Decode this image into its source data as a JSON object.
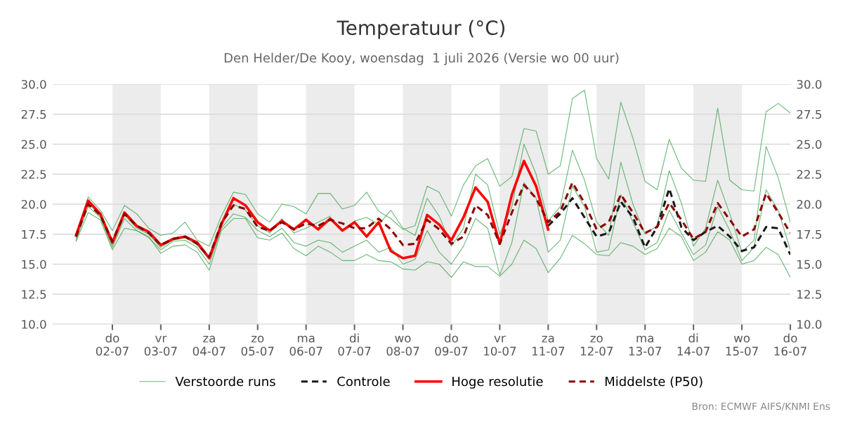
{
  "chart_data": {
    "type": "line",
    "title": "Temperatuur (°C)",
    "subtitle": "Den Helder/De Kooy, woensdag  1 juli 2026 (Versie wo 00 uur)",
    "annotations": [
      "Bron: ECMWF AIFS/KNMI Ens"
    ],
    "x": [
      "2026-07-01T06:00",
      "2026-07-01T12:00",
      "2026-07-01T18:00",
      "2026-07-02T00:00",
      "2026-07-02T06:00",
      "2026-07-02T12:00",
      "2026-07-02T18:00",
      "2026-07-03T00:00",
      "2026-07-03T06:00",
      "2026-07-03T12:00",
      "2026-07-03T18:00",
      "2026-07-04T00:00",
      "2026-07-04T06:00",
      "2026-07-04T12:00",
      "2026-07-04T18:00",
      "2026-07-05T00:00",
      "2026-07-05T06:00",
      "2026-07-05T12:00",
      "2026-07-05T18:00",
      "2026-07-06T00:00",
      "2026-07-06T06:00",
      "2026-07-06T12:00",
      "2026-07-06T18:00",
      "2026-07-07T00:00",
      "2026-07-07T06:00",
      "2026-07-07T12:00",
      "2026-07-07T18:00",
      "2026-07-08T00:00",
      "2026-07-08T06:00",
      "2026-07-08T12:00",
      "2026-07-08T18:00",
      "2026-07-09T00:00",
      "2026-07-09T06:00",
      "2026-07-09T12:00",
      "2026-07-09T18:00",
      "2026-07-10T00:00",
      "2026-07-10T06:00",
      "2026-07-10T12:00",
      "2026-07-10T18:00",
      "2026-07-11T00:00",
      "2026-07-11T06:00",
      "2026-07-11T12:00",
      "2026-07-11T18:00",
      "2026-07-12T00:00",
      "2026-07-12T06:00",
      "2026-07-12T12:00",
      "2026-07-12T18:00",
      "2026-07-13T00:00",
      "2026-07-13T06:00",
      "2026-07-13T12:00",
      "2026-07-13T18:00",
      "2026-07-14T00:00",
      "2026-07-14T06:00",
      "2026-07-14T12:00",
      "2026-07-14T18:00",
      "2026-07-15T00:00",
      "2026-07-15T06:00",
      "2026-07-15T12:00",
      "2026-07-15T18:00",
      "2026-07-16T00:00"
    ],
    "series": [
      {
        "name": "Verstoorde runs",
        "color": "#2e9a3e",
        "line_style": "solid",
        "values": [
          17.5,
          20.6,
          19.5,
          17.8,
          19.9,
          19.2,
          18.0,
          17.4,
          17.6,
          18.5,
          17.0,
          16.5,
          19.0,
          21.0,
          20.8,
          19.2,
          18.5,
          20.0,
          19.8,
          19.2,
          20.9,
          20.9,
          19.6,
          19.9,
          21.0,
          19.4,
          18.8,
          17.9,
          18.2,
          21.5,
          21.0,
          19.0,
          21.6,
          23.2,
          23.8,
          21.5,
          22.3,
          26.3,
          26.1,
          22.5,
          23.2,
          28.8,
          29.5,
          23.8,
          22.1,
          28.5,
          25.5,
          21.9,
          21.2,
          25.4,
          23.0,
          22.0,
          21.9,
          28.0,
          22.0,
          21.2,
          21.1,
          27.7,
          28.4,
          27.6
        ]
      },
      {
        "color": "#2e9a3e",
        "line_style": "solid",
        "values": [
          16.9,
          19.3,
          18.7,
          16.2,
          18.0,
          17.8,
          17.3,
          15.9,
          16.5,
          16.6,
          16.0,
          14.5,
          17.8,
          18.8,
          18.8,
          17.2,
          17.0,
          17.6,
          16.3,
          15.7,
          16.5,
          16.0,
          15.3,
          15.3,
          15.8,
          15.3,
          15.2,
          14.6,
          14.5,
          15.2,
          15.0,
          13.9,
          15.2,
          14.8,
          14.8,
          14.0,
          15.0,
          17.0,
          16.3,
          14.3,
          15.5,
          17.4,
          16.7,
          15.8,
          15.7,
          16.8,
          16.5,
          15.8,
          16.3,
          18.0,
          17.3,
          15.3,
          16.0,
          17.7,
          17.0,
          15.0,
          15.3,
          16.4,
          15.8,
          13.9
        ]
      },
      {
        "color": "#2e9a3e",
        "line_style": "solid",
        "values": [
          17.2,
          20.1,
          19.0,
          16.6,
          19.1,
          18.0,
          17.5,
          16.4,
          17.0,
          17.2,
          16.6,
          15.4,
          18.5,
          20.0,
          19.5,
          18.2,
          17.6,
          18.8,
          17.6,
          18.0,
          18.5,
          19.0,
          null,
          18.6,
          18.9,
          18.3,
          19.5,
          18.0,
          17.4,
          20.5,
          19.0,
          16.5,
          18.0,
          22.5,
          21.6,
          17.5,
          19.8,
          25.0,
          22.5,
          18.6,
          19.8,
          24.5,
          22.0,
          18.5,
          17.4,
          23.5,
          20.0,
          17.5,
          18.2,
          22.8,
          20.1,
          16.5,
          18.0,
          22.0,
          19.2,
          16.0,
          17.0,
          24.8,
          22.2,
          18.5
        ]
      },
      {
        "color": "#2e9a3e",
        "line_style": "solid",
        "values": [
          17.0,
          19.8,
          18.9,
          16.4,
          18.8,
          17.8,
          17.2,
          16.2,
          16.9,
          17.0,
          16.4,
          15.0,
          18.0,
          19.2,
          18.9,
          17.8,
          17.3,
          18.0,
          16.8,
          16.5,
          17.0,
          16.8,
          16.0,
          16.5,
          17.0,
          16.0,
          16.4,
          15.0,
          15.4,
          17.8,
          16.0,
          15.0,
          16.5,
          18.8,
          18.0,
          14.1,
          16.8,
          21.8,
          20.5,
          16.0,
          17.0,
          21.5,
          19.8,
          16.0,
          16.2,
          20.8,
          18.5,
          16.2,
          16.8,
          19.5,
          17.6,
          15.8,
          16.6,
          19.8,
          17.8,
          15.3,
          16.4,
          21.2,
          19.5,
          16.2
        ]
      },
      {
        "name": "Controle",
        "color": "#1a1a1a",
        "line_style": "dashed",
        "values": [
          null,
          null,
          null,
          null,
          null,
          null,
          null,
          null,
          null,
          null,
          null,
          null,
          null,
          null,
          null,
          null,
          null,
          null,
          null,
          null,
          null,
          null,
          null,
          null,
          null,
          null,
          null,
          null,
          null,
          null,
          null,
          null,
          null,
          null,
          null,
          null,
          null,
          null,
          null,
          18.2,
          19.2,
          20.5,
          18.9,
          17.3,
          17.6,
          20.2,
          18.9,
          16.4,
          18.1,
          21.3,
          18.1,
          17.0,
          17.7,
          18.2,
          17.3,
          16.1,
          16.4,
          18.1,
          18.0,
          15.8
        ]
      },
      {
        "name": "Hoge resolutie",
        "color": "#ff0000",
        "line_style": "solid",
        "values": [
          17.4,
          20.3,
          19.2,
          16.8,
          19.3,
          18.2,
          17.7,
          16.6,
          17.1,
          17.3,
          16.8,
          15.5,
          18.3,
          20.5,
          19.9,
          18.5,
          17.8,
          18.6,
          17.9,
          18.7,
          17.9,
          18.8,
          17.8,
          18.5,
          17.3,
          18.5,
          16.1,
          15.5,
          15.7,
          19.1,
          18.3,
          17.0,
          18.9,
          21.4,
          20.2,
          16.7,
          20.8,
          23.6,
          21.5,
          17.9,
          null,
          null,
          null,
          null,
          null,
          null,
          null,
          null,
          null,
          null,
          null,
          null,
          null,
          null,
          null,
          null,
          null,
          null,
          null,
          null
        ]
      },
      {
        "name": "Middelste (P50)",
        "color": "#8b0000",
        "line_style": "dashed",
        "values": [
          17.3,
          20.0,
          19.1,
          16.9,
          19.2,
          18.2,
          17.6,
          16.6,
          17.1,
          17.3,
          16.7,
          15.6,
          18.4,
          19.9,
          19.6,
          18.1,
          17.8,
          18.5,
          17.9,
          18.4,
          18.2,
          18.7,
          18.4,
          18.0,
          18.0,
          18.8,
          17.9,
          16.6,
          16.7,
          18.7,
          17.9,
          16.7,
          17.3,
          19.9,
          19.1,
          16.7,
          19.3,
          21.6,
          20.5,
          18.5,
          19.4,
          21.8,
          20.1,
          17.9,
          18.5,
          20.8,
          19.3,
          17.6,
          18.1,
          20.1,
          18.7,
          17.1,
          17.7,
          20.1,
          18.7,
          17.3,
          17.9,
          20.9,
          19.3,
          17.6
        ]
      }
    ],
    "xlim": [
      "2026-06-30T18:25",
      "2026-07-16T00:00"
    ],
    "xticks": [
      {
        "value": "2026-07-02",
        "label": "do\n02-07"
      },
      {
        "value": "2026-07-03",
        "label": "vr\n03-07"
      },
      {
        "value": "2026-07-04",
        "label": "za\n04-07"
      },
      {
        "value": "2026-07-05",
        "label": "zo\n05-07"
      },
      {
        "value": "2026-07-06",
        "label": "ma\n06-07"
      },
      {
        "value": "2026-07-07",
        "label": "di\n07-07"
      },
      {
        "value": "2026-07-08",
        "label": "wo\n08-07"
      },
      {
        "value": "2026-07-09",
        "label": "do\n09-07"
      },
      {
        "value": "2026-07-10",
        "label": "vr\n10-07"
      },
      {
        "value": "2026-07-11",
        "label": "za\n11-07"
      },
      {
        "value": "2026-07-12",
        "label": "zo\n12-07"
      },
      {
        "value": "2026-07-13",
        "label": "ma\n13-07"
      },
      {
        "value": "2026-07-14",
        "label": "di\n14-07"
      },
      {
        "value": "2026-07-15",
        "label": "wo\n15-07"
      },
      {
        "value": "2026-07-16",
        "label": "do\n16-07"
      }
    ],
    "ylim": [
      10,
      30
    ],
    "yticks": [
      {
        "value": 10,
        "label": "10.0"
      },
      {
        "value": 12.5,
        "label": "12.5"
      },
      {
        "value": 15,
        "label": "15.0"
      },
      {
        "value": 17.5,
        "label": "17.5"
      },
      {
        "value": 20,
        "label": "20.0"
      },
      {
        "value": 22.5,
        "label": "22.5"
      },
      {
        "value": 25,
        "label": "25.0"
      },
      {
        "value": 27.5,
        "label": "27.5"
      },
      {
        "value": 30,
        "label": "30.0"
      }
    ],
    "y2lim": [
      10,
      30
    ],
    "y2ticks": [
      {
        "value": 10,
        "label": "10.0"
      },
      {
        "value": 12.5,
        "label": "12.5"
      },
      {
        "value": 15,
        "label": "15.0"
      },
      {
        "value": 17.5,
        "label": "17.5"
      },
      {
        "value": 20,
        "label": "20.0"
      },
      {
        "value": 22.5,
        "label": "22.5"
      },
      {
        "value": 25,
        "label": "25.0"
      },
      {
        "value": 27.5,
        "label": "27.5"
      },
      {
        "value": 30,
        "label": "30.0"
      }
    ],
    "bands": [
      {
        "axis": "x",
        "from": "2026-07-02",
        "to": "2026-07-03",
        "color": "#ececec"
      },
      {
        "axis": "x",
        "from": "2026-07-04",
        "to": "2026-07-05",
        "color": "#ececec"
      },
      {
        "axis": "x",
        "from": "2026-07-06",
        "to": "2026-07-07",
        "color": "#ececec"
      },
      {
        "axis": "x",
        "from": "2026-07-08",
        "to": "2026-07-09",
        "color": "#ececec"
      },
      {
        "axis": "x",
        "from": "2026-07-10",
        "to": "2026-07-11",
        "color": "#ececec"
      },
      {
        "axis": "x",
        "from": "2026-07-12",
        "to": "2026-07-13",
        "color": "#ececec"
      },
      {
        "axis": "x",
        "from": "2026-07-14",
        "to": "2026-07-15",
        "color": "#ececec"
      }
    ],
    "grid": "y",
    "legend": "bottom",
    "marker": "none"
  }
}
